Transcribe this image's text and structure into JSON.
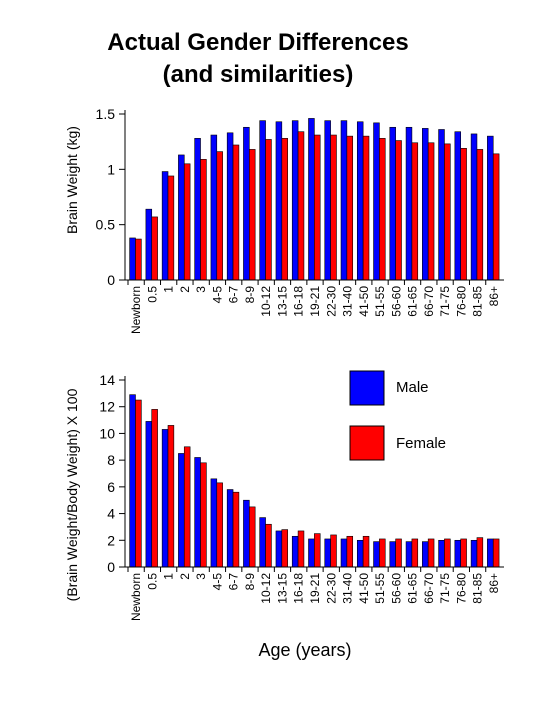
{
  "page": {
    "title_line1": "Actual Gender Differences",
    "title_line2": "(and similarities)"
  },
  "colors": {
    "male": "#0000ff",
    "female": "#ff0000",
    "bar_outline": "#000000"
  },
  "legend": {
    "position": "top-right of lower chart",
    "items": [
      {
        "label": "Male",
        "color": "#0000ff"
      },
      {
        "label": "Female",
        "color": "#ff0000"
      }
    ]
  },
  "chart_data": [
    {
      "type": "bar",
      "title": "",
      "xlabel": "",
      "ylabel": "Brain Weight (kg)",
      "ylim": [
        0,
        1.5
      ],
      "yticks": [
        0,
        0.5,
        1,
        1.5
      ],
      "ytick_labels": [
        "0",
        "0.5",
        "1",
        "1.5"
      ],
      "grid": false,
      "categories": [
        "Newborn",
        "0.5",
        "1",
        "2",
        "3",
        "4-5",
        "6-7",
        "8-9",
        "10-12",
        "13-15",
        "16-18",
        "19-21",
        "22-30",
        "31-40",
        "41-50",
        "51-55",
        "56-60",
        "61-65",
        "66-70",
        "71-75",
        "76-80",
        "81-85",
        "86+"
      ],
      "series": [
        {
          "name": "Male",
          "color": "#0000ff",
          "values": [
            0.38,
            0.64,
            0.98,
            1.13,
            1.28,
            1.31,
            1.33,
            1.38,
            1.44,
            1.43,
            1.44,
            1.46,
            1.44,
            1.44,
            1.43,
            1.42,
            1.38,
            1.38,
            1.37,
            1.36,
            1.34,
            1.32,
            1.3
          ]
        },
        {
          "name": "Female",
          "color": "#ff0000",
          "values": [
            0.37,
            0.57,
            0.94,
            1.05,
            1.09,
            1.16,
            1.22,
            1.18,
            1.27,
            1.28,
            1.34,
            1.31,
            1.31,
            1.3,
            1.3,
            1.28,
            1.26,
            1.24,
            1.24,
            1.23,
            1.19,
            1.18,
            1.14
          ]
        }
      ]
    },
    {
      "type": "bar",
      "title": "",
      "xlabel": "Age (years)",
      "ylabel": "(Brain Weight/Body Weight) X 100",
      "ylim": [
        0,
        14
      ],
      "yticks": [
        0,
        2,
        4,
        6,
        8,
        10,
        12,
        14
      ],
      "ytick_labels": [
        "0",
        "2",
        "4",
        "6",
        "8",
        "10",
        "12",
        "14"
      ],
      "grid": false,
      "categories": [
        "Newborn",
        "0.5",
        "1",
        "2",
        "3",
        "4-5",
        "6-7",
        "8-9",
        "10-12",
        "13-15",
        "16-18",
        "19-21",
        "22-30",
        "31-40",
        "41-50",
        "51-55",
        "56-60",
        "61-65",
        "66-70",
        "71-75",
        "76-80",
        "81-85",
        "86+"
      ],
      "series": [
        {
          "name": "Male",
          "color": "#0000ff",
          "values": [
            12.9,
            10.9,
            10.3,
            8.5,
            8.2,
            6.6,
            5.8,
            5.0,
            3.7,
            2.7,
            2.3,
            2.1,
            2.1,
            2.1,
            2.0,
            1.9,
            1.9,
            1.9,
            1.9,
            2.0,
            2.0,
            2.0,
            2.1
          ]
        },
        {
          "name": "Female",
          "color": "#ff0000",
          "values": [
            12.5,
            11.8,
            10.6,
            9.0,
            7.8,
            6.3,
            5.6,
            4.5,
            3.2,
            2.8,
            2.7,
            2.5,
            2.4,
            2.3,
            2.3,
            2.1,
            2.1,
            2.1,
            2.1,
            2.1,
            2.1,
            2.2,
            2.1
          ]
        }
      ]
    }
  ]
}
